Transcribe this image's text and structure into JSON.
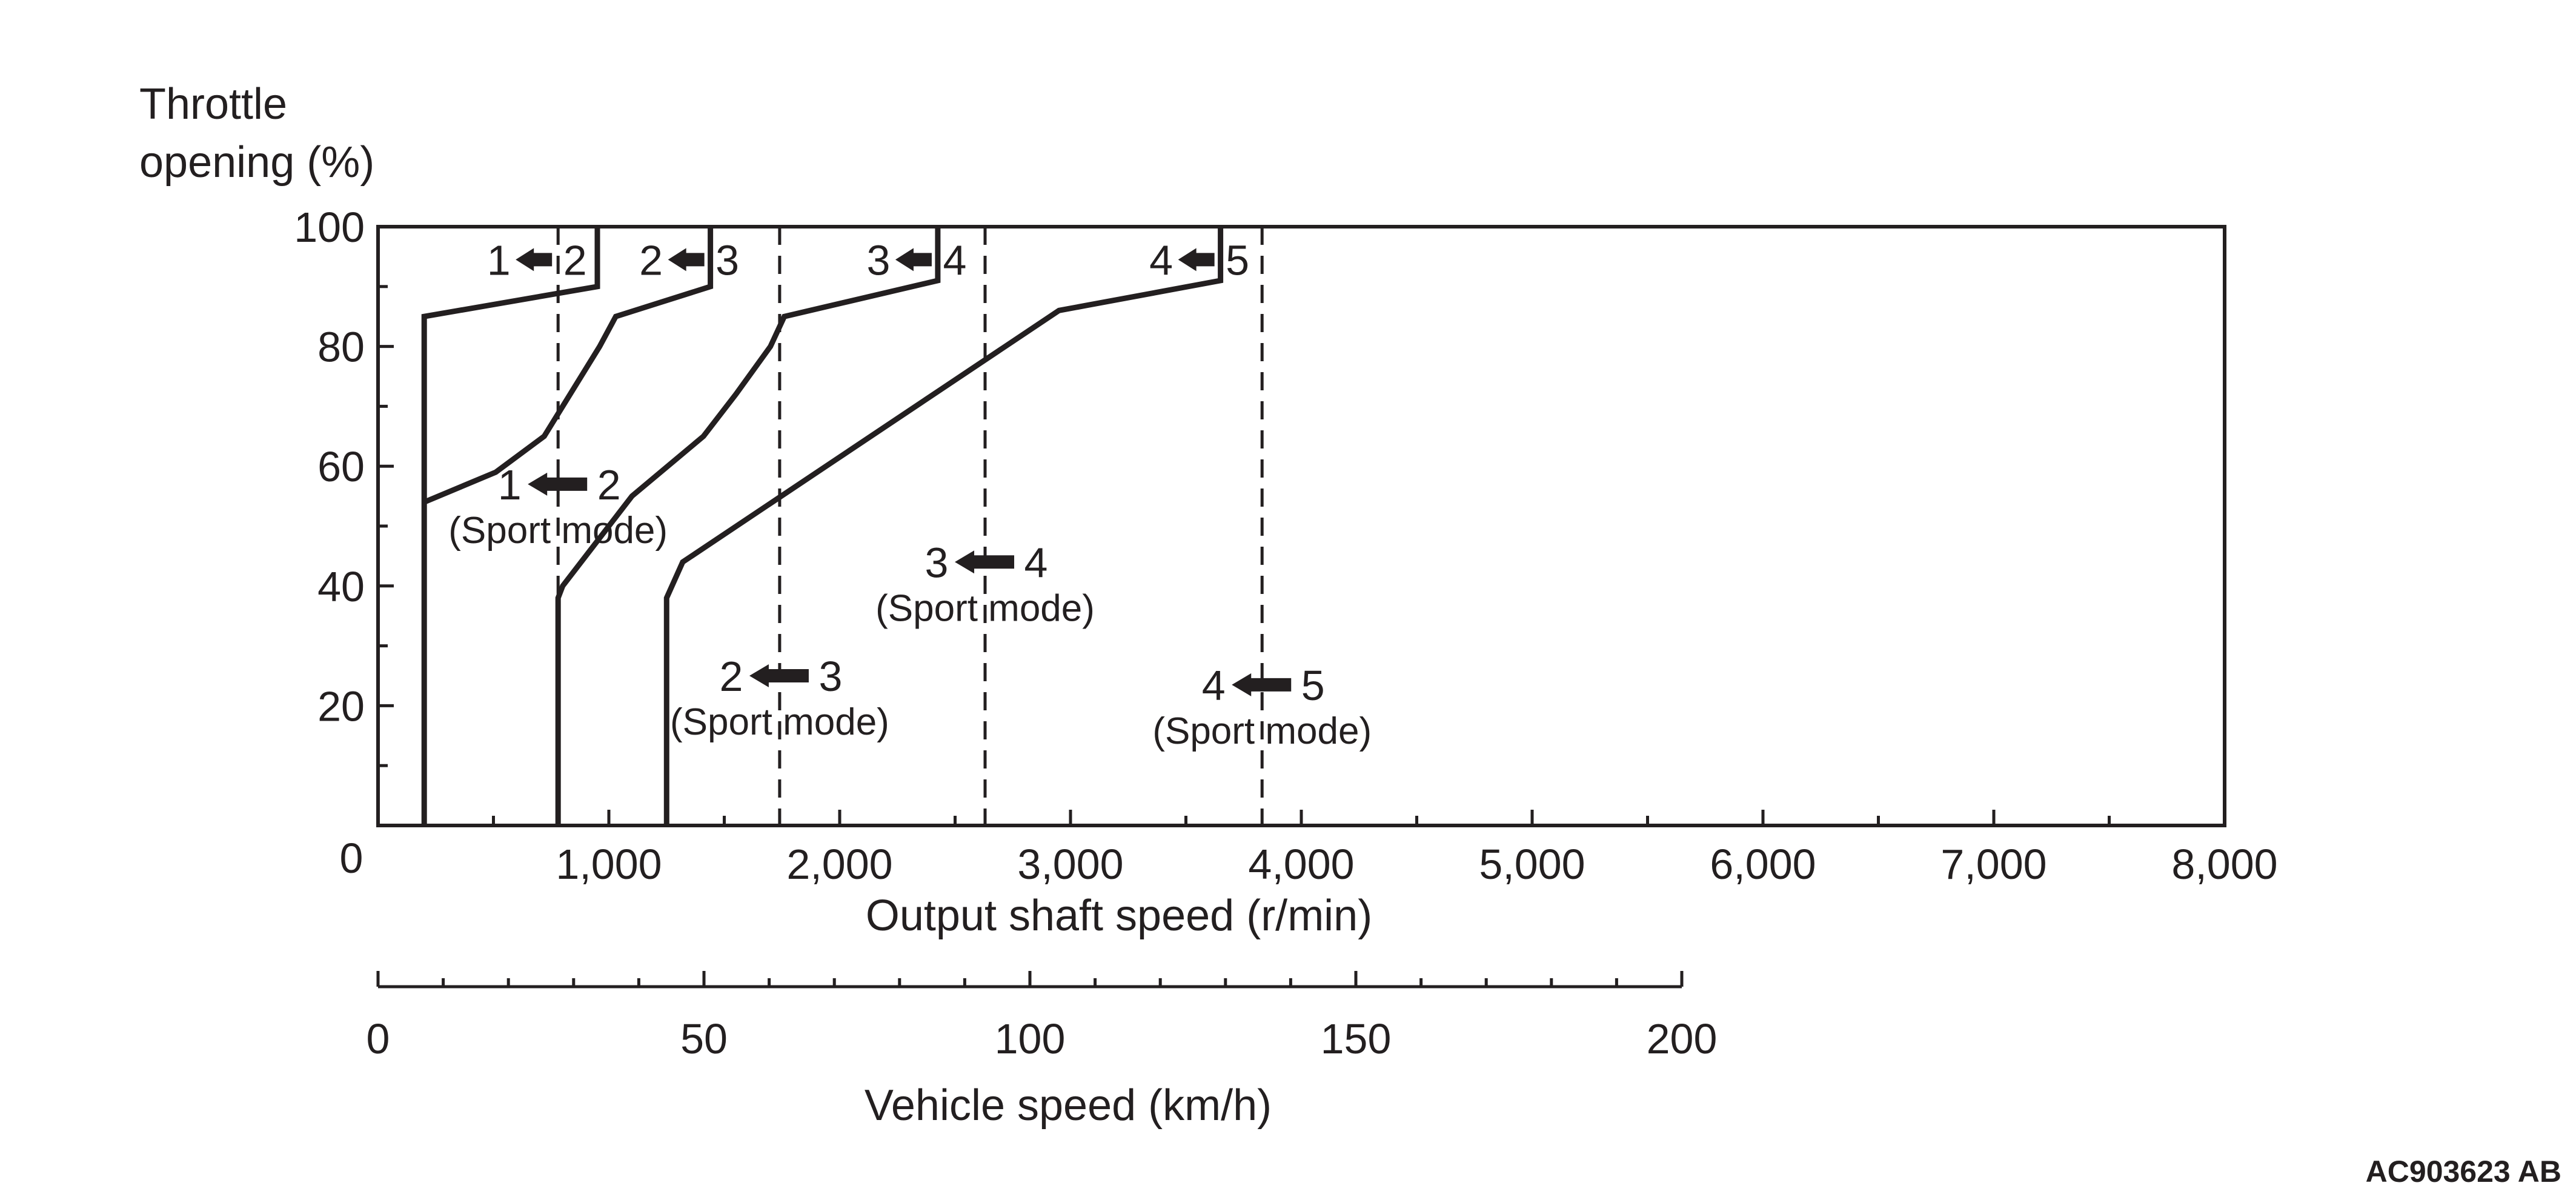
{
  "figure_code": "AC903623 AB",
  "colors": {
    "ink": "#231f20",
    "background": "#ffffff"
  },
  "chart_data": {
    "type": "line",
    "title": "",
    "ylabel": "Throttle opening (%)",
    "ylabel_lines": [
      "Throttle",
      "opening (%)"
    ],
    "xlabel": "Output shaft speed (r/min)",
    "xlim": [
      0,
      8000
    ],
    "ylim": [
      0,
      100
    ],
    "x_ticks": [
      0,
      1000,
      2000,
      3000,
      4000,
      5000,
      6000,
      7000,
      8000
    ],
    "x_tick_labels": [
      "0",
      "1,000",
      "2,000",
      "3,000",
      "4,000",
      "5,000",
      "6,000",
      "7,000",
      "8,000"
    ],
    "y_ticks": [
      20,
      40,
      60,
      80,
      100
    ],
    "y_tick_labels": [
      "20",
      "40",
      "60",
      "80",
      "100"
    ],
    "secondary_axis": {
      "label": "Vehicle speed (km/h)",
      "range": [
        0,
        200
      ],
      "ticks": [
        0,
        50,
        100,
        150,
        200
      ],
      "tick_labels": [
        "0",
        "50",
        "100",
        "150",
        "200"
      ],
      "minor_step": 10
    },
    "series": [
      {
        "name": "1 ← 2",
        "style": "solid",
        "points": [
          [
            950,
            100
          ],
          [
            950,
            90
          ],
          [
            200,
            85
          ],
          [
            200,
            0
          ]
        ]
      },
      {
        "name": "2 ← 3",
        "style": "solid",
        "points": [
          [
            1440,
            100
          ],
          [
            1440,
            90
          ],
          [
            1030,
            85
          ],
          [
            960,
            80
          ],
          [
            720,
            65
          ],
          [
            510,
            59
          ],
          [
            200,
            54
          ]
        ]
      },
      {
        "name": "3 ← 4",
        "style": "solid",
        "points": [
          [
            2425,
            100
          ],
          [
            2425,
            91
          ],
          [
            1760,
            85
          ],
          [
            1700,
            80
          ],
          [
            1550,
            72
          ],
          [
            1410,
            65
          ],
          [
            1100,
            55
          ],
          [
            800,
            40
          ],
          [
            780,
            38
          ],
          [
            780,
            0
          ]
        ]
      },
      {
        "name": "4 ← 5",
        "style": "solid",
        "points": [
          [
            3650,
            100
          ],
          [
            3650,
            91
          ],
          [
            2950,
            86
          ],
          [
            1320,
            44
          ],
          [
            1250,
            38
          ],
          [
            1250,
            0
          ]
        ]
      },
      {
        "name": "1 ← 2 (Sport mode)",
        "style": "dashed",
        "points": [
          [
            780,
            100
          ],
          [
            780,
            0
          ]
        ]
      },
      {
        "name": "2 ← 3 (Sport mode)",
        "style": "dashed",
        "points": [
          [
            1740,
            100
          ],
          [
            1740,
            0
          ]
        ]
      },
      {
        "name": "3 ← 4 (Sport mode)",
        "style": "dashed",
        "points": [
          [
            2630,
            100
          ],
          [
            2630,
            0
          ]
        ]
      },
      {
        "name": "4 ← 5 (Sport mode)",
        "style": "dashed",
        "points": [
          [
            3830,
            100
          ],
          [
            3830,
            0
          ]
        ]
      }
    ],
    "annotations": [
      {
        "id": "s12",
        "from": "1",
        "to": "2",
        "x": 780,
        "y": 94.5,
        "sport": false
      },
      {
        "id": "s23",
        "from": "2",
        "to": "3",
        "x": 1440,
        "y": 94.5,
        "sport": false
      },
      {
        "id": "s34",
        "from": "3",
        "to": "4",
        "x": 2425,
        "y": 94.5,
        "sport": false
      },
      {
        "id": "s45",
        "from": "4",
        "to": "5",
        "x": 3650,
        "y": 94.5,
        "sport": false
      },
      {
        "id": "sp12",
        "from": "1",
        "to": "2",
        "x": 780,
        "y": 57,
        "sport": true
      },
      {
        "id": "sp34",
        "from": "3",
        "to": "4",
        "x": 2630,
        "y": 44,
        "sport": true
      },
      {
        "id": "sp23",
        "from": "2",
        "to": "3",
        "x": 1740,
        "y": 25,
        "sport": true
      },
      {
        "id": "sp45",
        "from": "4",
        "to": "5",
        "x": 3830,
        "y": 23.5,
        "sport": true
      }
    ],
    "sport_label": "(Sport mode)"
  }
}
